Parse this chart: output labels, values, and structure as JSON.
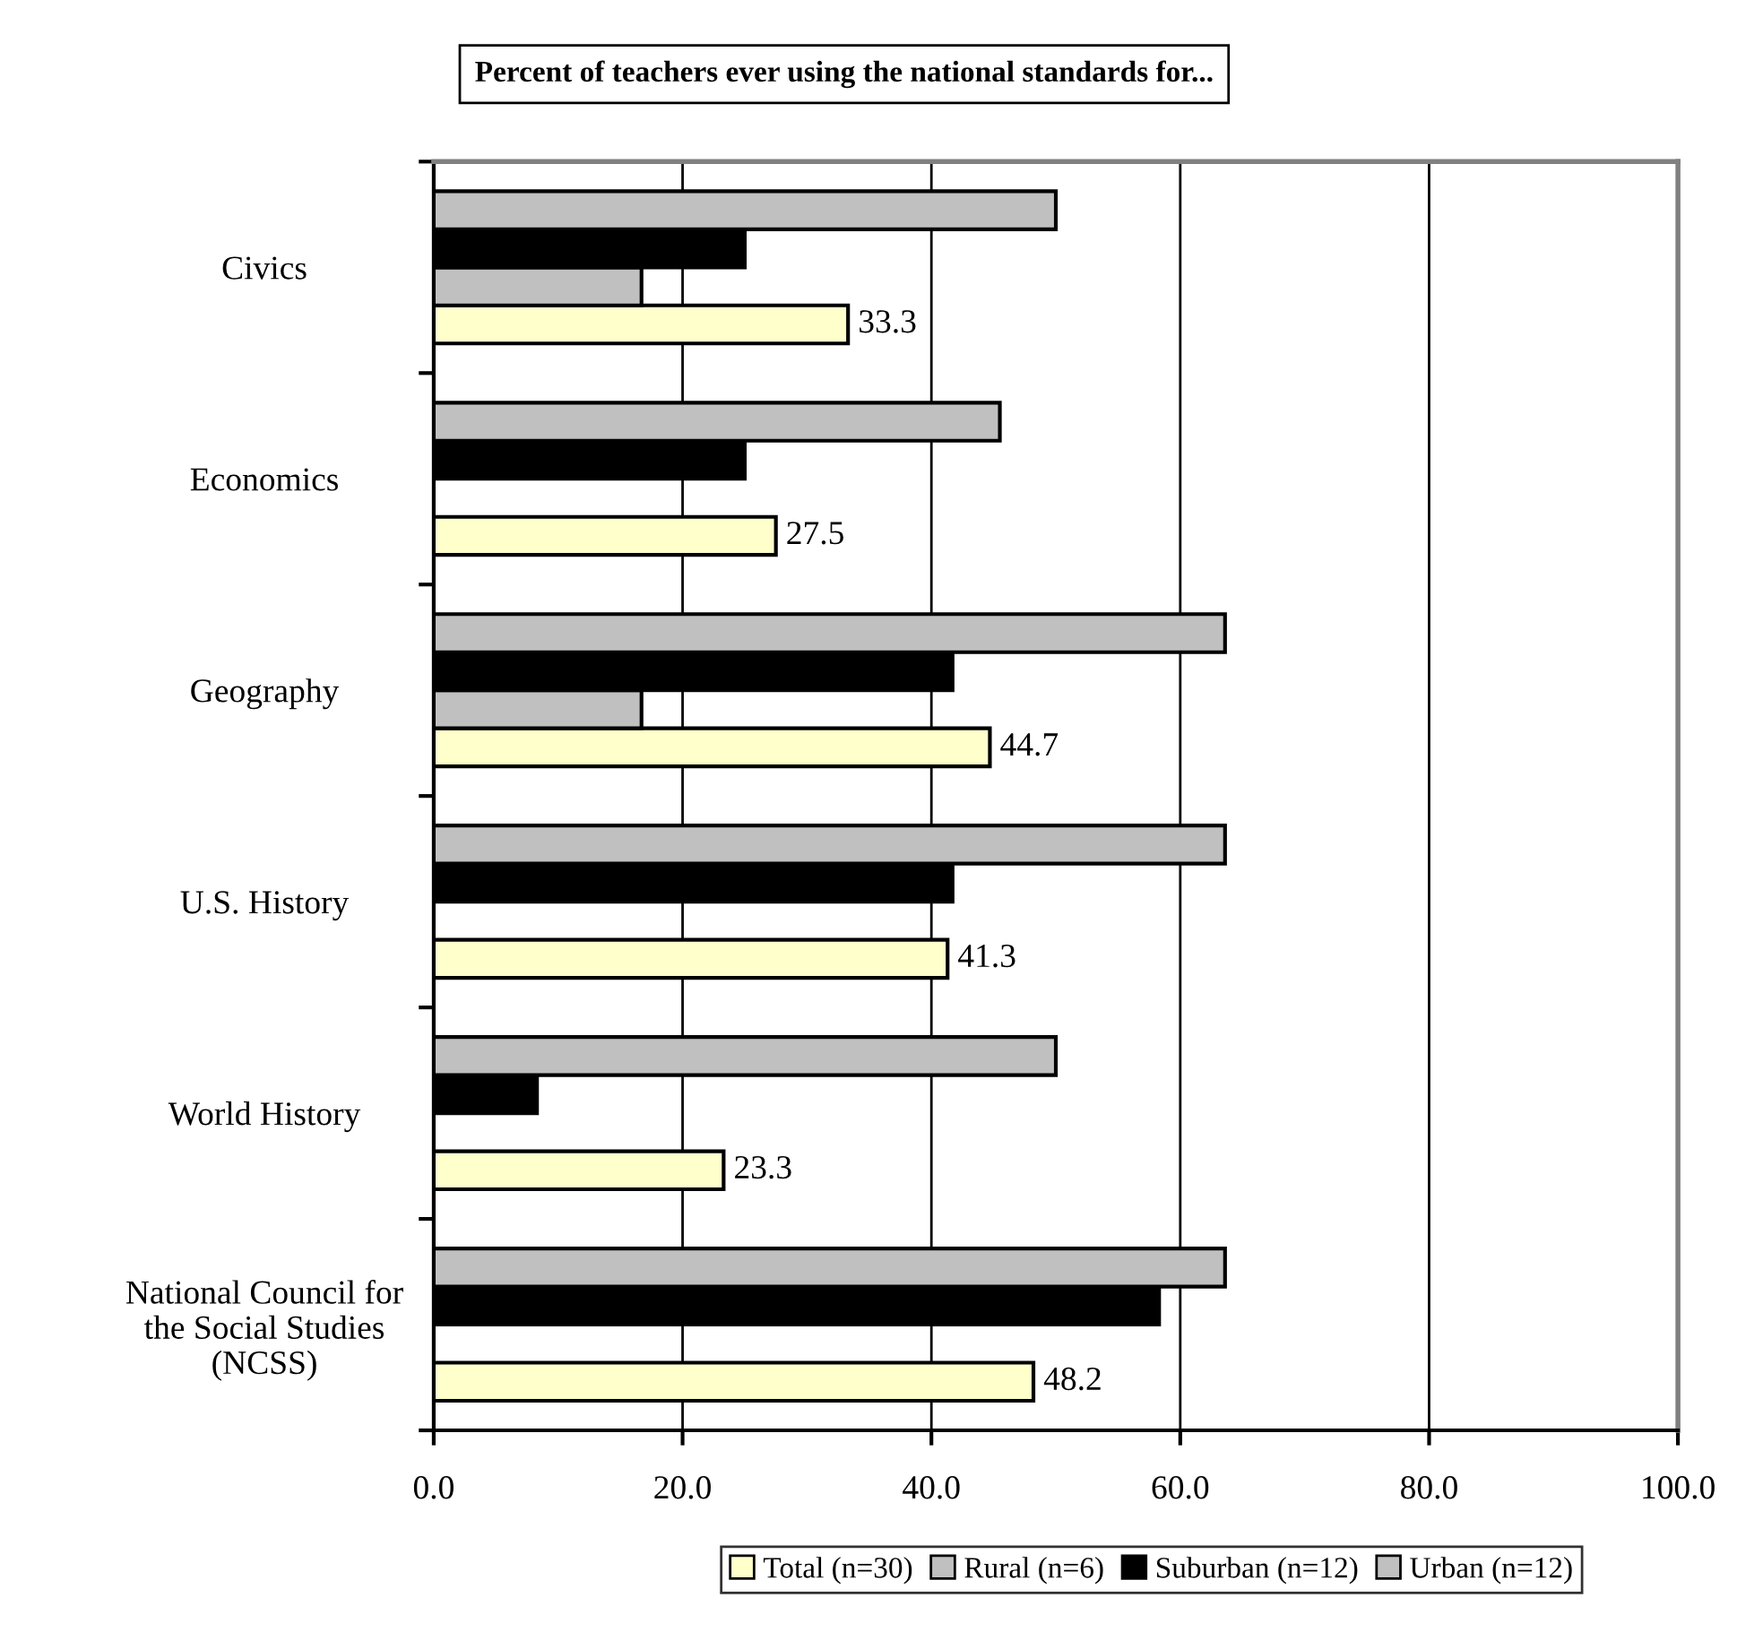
{
  "chart_data": {
    "type": "bar",
    "orientation": "horizontal",
    "title": "Percent of teachers ever using the national standards for...",
    "categories": [
      "Civics",
      "Economics",
      "Geography",
      "U.S. History",
      "World History",
      "National Council for\nthe Social Studies\n(NCSS)"
    ],
    "series": [
      {
        "name": "Total (n=30)",
        "color": "#ffffcc",
        "values": [
          33.3,
          27.5,
          44.7,
          41.3,
          23.3,
          48.2
        ],
        "value_labels": [
          "33.3",
          "27.5",
          "44.7",
          "41.3",
          "23.3",
          "48.2"
        ]
      },
      {
        "name": "Rural (n=6)",
        "color": "#c0c0c0",
        "values": [
          16.7,
          null,
          16.7,
          null,
          null,
          null
        ]
      },
      {
        "name": "Suburban (n=12)",
        "color": "#000000",
        "values": [
          25,
          25,
          41.7,
          41.7,
          8.3,
          58.3
        ]
      },
      {
        "name": "Urban (n=12)",
        "color": "#c0c0c0",
        "values": [
          50,
          45.5,
          63.6,
          63.6,
          50,
          63.6
        ]
      }
    ],
    "xlim": [
      0,
      100
    ],
    "xticks": [
      {
        "value": 0,
        "label": "0.0"
      },
      {
        "value": 20,
        "label": "20.0"
      },
      {
        "value": 40,
        "label": "40.0"
      },
      {
        "value": 60,
        "label": "60.0"
      },
      {
        "value": 80,
        "label": "80.0"
      },
      {
        "value": 100,
        "label": "100.0"
      }
    ],
    "grid": "x",
    "legend": "bottom"
  }
}
